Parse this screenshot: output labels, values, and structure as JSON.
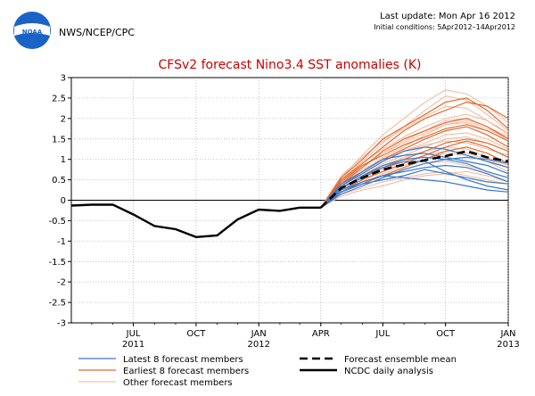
{
  "header": {
    "logo_text": "NOAA",
    "org": "NWS/NCEP/CPC",
    "last_update": "Last update: Mon Apr 16 2012",
    "initial_conditions": "Initial conditions: 5Apr2012–14Apr2012"
  },
  "colors": {
    "title": "#cc0000",
    "observed": "#000000",
    "ensemble_mean": "#000000",
    "latest_members": "#3a78c8",
    "earliest_members": "#e06a2e",
    "other_members": "#f2b79a",
    "grid": "#aaaaaa",
    "logo_blue": "#1a63c6"
  },
  "chart_data": {
    "type": "line",
    "title": "CFSv2 forecast Nino3.4 SST anomalies (K)",
    "xlabel": "",
    "ylabel": "",
    "ylim": [
      -3,
      3
    ],
    "yticks": [
      -3,
      -2.5,
      -2,
      -1.5,
      -1,
      -0.5,
      0,
      0.5,
      1,
      1.5,
      2,
      2.5,
      3
    ],
    "ytick_labels": [
      "-3",
      "-2.5",
      "-2",
      "-1.5",
      "-1",
      "-0.5",
      "0",
      "0.5",
      "1",
      "1.5",
      "2",
      "2.5",
      "3"
    ],
    "xlim": [
      "2011-04-15",
      "2013-01-15"
    ],
    "xticks": [
      {
        "x": "2011-07-15",
        "label": "JUL",
        "year": "2011"
      },
      {
        "x": "2011-10-15",
        "label": "OCT",
        "year": ""
      },
      {
        "x": "2012-01-15",
        "label": "JAN",
        "year": "2012"
      },
      {
        "x": "2012-04-15",
        "label": "APR",
        "year": ""
      },
      {
        "x": "2012-07-15",
        "label": "JUL",
        "year": ""
      },
      {
        "x": "2012-10-15",
        "label": "OCT",
        "year": ""
      },
      {
        "x": "2013-01-15",
        "label": "JAN",
        "year": "2013"
      }
    ],
    "grid": true,
    "legend_position": "bottom",
    "legend": [
      {
        "label": "Latest 8 forecast members",
        "style": "latest"
      },
      {
        "label": "Earliest 8 forecast members",
        "style": "earliest"
      },
      {
        "label": "Other forecast members",
        "style": "other"
      },
      {
        "label": "Forecast ensemble mean",
        "style": "mean"
      },
      {
        "label": "NCDC daily analysis",
        "style": "observed"
      }
    ],
    "observed": {
      "x": [
        "2011-04-15",
        "2011-05-15",
        "2011-06-15",
        "2011-07-15",
        "2011-08-15",
        "2011-09-15",
        "2011-10-15",
        "2011-11-15",
        "2011-12-15",
        "2012-01-15",
        "2012-02-15",
        "2012-03-15",
        "2012-04-15"
      ],
      "y": [
        -0.13,
        -0.11,
        -0.11,
        -0.35,
        -0.63,
        -0.71,
        -0.9,
        -0.86,
        -0.47,
        -0.23,
        -0.26,
        -0.18,
        -0.18
      ]
    },
    "ensemble_mean": {
      "x": [
        "2012-04-15",
        "2012-05-15",
        "2012-06-15",
        "2012-07-15",
        "2012-08-15",
        "2012-09-15",
        "2012-10-15",
        "2012-11-15",
        "2012-12-15",
        "2013-01-15"
      ],
      "y": [
        -0.18,
        0.3,
        0.55,
        0.75,
        0.87,
        0.98,
        1.08,
        1.2,
        1.05,
        0.95
      ]
    },
    "forecast_members": {
      "x": [
        "2012-04-15",
        "2012-05-15",
        "2012-06-15",
        "2012-07-15",
        "2012-08-15",
        "2012-09-15",
        "2012-10-15",
        "2012-11-15",
        "2012-12-15",
        "2013-01-15"
      ],
      "latest": [
        [
          -0.18,
          0.35,
          0.65,
          0.95,
          1.2,
          1.3,
          1.25,
          1.1,
          0.95,
          0.8
        ],
        [
          -0.18,
          0.2,
          0.45,
          0.6,
          0.7,
          0.8,
          0.85,
          0.8,
          0.65,
          0.45
        ],
        [
          -0.18,
          0.3,
          0.55,
          0.8,
          0.95,
          0.95,
          0.7,
          0.5,
          0.35,
          0.25
        ],
        [
          -0.18,
          0.25,
          0.45,
          0.6,
          0.55,
          0.5,
          0.45,
          0.35,
          0.25,
          0.2
        ],
        [
          -0.18,
          0.4,
          0.7,
          1.0,
          1.1,
          1.15,
          1.05,
          0.95,
          0.85,
          0.65
        ],
        [
          -0.18,
          0.15,
          0.35,
          0.55,
          0.75,
          0.9,
          1.0,
          1.05,
          1.0,
          0.9
        ],
        [
          -0.18,
          0.3,
          0.6,
          0.85,
          1.0,
          1.05,
          1.0,
          0.9,
          0.7,
          0.55
        ],
        [
          -0.18,
          0.2,
          0.4,
          0.5,
          0.6,
          0.75,
          0.65,
          0.55,
          0.45,
          0.4
        ]
      ],
      "earliest": [
        [
          -0.18,
          0.5,
          0.9,
          1.3,
          1.7,
          2.0,
          2.2,
          2.4,
          2.3,
          2.0
        ],
        [
          -0.18,
          0.55,
          1.0,
          1.5,
          1.8,
          2.1,
          2.4,
          2.5,
          2.2,
          1.75
        ],
        [
          -0.18,
          0.3,
          0.6,
          0.8,
          1.0,
          1.2,
          1.4,
          1.5,
          1.4,
          1.2
        ],
        [
          -0.18,
          0.4,
          0.8,
          1.2,
          1.5,
          1.7,
          1.9,
          2.0,
          1.8,
          1.5
        ],
        [
          -0.18,
          0.25,
          0.5,
          0.7,
          0.9,
          1.1,
          1.3,
          1.45,
          1.3,
          1.05
        ],
        [
          -0.18,
          0.35,
          0.7,
          1.0,
          1.25,
          1.5,
          1.7,
          1.8,
          1.6,
          1.3
        ],
        [
          -0.18,
          0.2,
          0.4,
          0.6,
          0.8,
          1.0,
          1.2,
          1.3,
          1.15,
          0.9
        ],
        [
          -0.18,
          0.45,
          0.85,
          1.1,
          1.35,
          1.55,
          1.75,
          1.85,
          1.7,
          1.45
        ]
      ],
      "other": [
        [
          -0.18,
          0.55,
          1.1,
          1.6,
          2.0,
          2.4,
          2.7,
          2.6,
          2.3,
          1.9
        ],
        [
          -0.18,
          0.5,
          0.95,
          1.4,
          1.8,
          2.2,
          2.55,
          2.45,
          2.1,
          1.7
        ],
        [
          -0.18,
          0.15,
          0.3,
          0.45,
          0.55,
          0.65,
          0.7,
          0.6,
          0.5,
          0.4
        ],
        [
          -0.18,
          0.35,
          0.7,
          1.05,
          1.3,
          1.6,
          1.85,
          1.95,
          1.75,
          1.5
        ],
        [
          -0.18,
          0.2,
          0.45,
          0.6,
          0.75,
          0.9,
          0.95,
          0.85,
          0.7,
          0.55
        ],
        [
          -0.18,
          0.45,
          0.9,
          1.25,
          1.55,
          1.8,
          2.0,
          2.1,
          1.95,
          1.65
        ],
        [
          -0.18,
          0.3,
          0.55,
          0.85,
          1.05,
          1.2,
          1.3,
          1.25,
          1.05,
          0.85
        ],
        [
          -0.18,
          0.4,
          0.75,
          1.0,
          1.2,
          1.35,
          1.45,
          1.4,
          1.25,
          1.1
        ],
        [
          -0.18,
          0.25,
          0.5,
          0.75,
          0.95,
          1.1,
          1.2,
          1.15,
          1.0,
          0.8
        ],
        [
          -0.18,
          0.6,
          1.05,
          1.45,
          1.75,
          2.05,
          2.3,
          2.25,
          1.95,
          1.6
        ],
        [
          -0.18,
          0.1,
          0.25,
          0.35,
          0.5,
          0.6,
          0.65,
          0.7,
          0.6,
          0.45
        ],
        [
          -0.18,
          0.35,
          0.65,
          0.95,
          1.2,
          1.4,
          1.6,
          1.65,
          1.5,
          1.25
        ],
        [
          -0.18,
          0.5,
          0.85,
          1.15,
          1.4,
          1.65,
          1.85,
          1.9,
          1.7,
          1.45
        ],
        [
          -0.18,
          0.2,
          0.4,
          0.65,
          0.85,
          1.0,
          1.15,
          1.1,
          0.95,
          0.7
        ],
        [
          -0.18,
          0.45,
          0.8,
          1.15,
          1.45,
          1.7,
          1.95,
          2.0,
          1.8,
          1.55
        ],
        [
          -0.18,
          0.3,
          0.6,
          0.9,
          1.1,
          1.3,
          1.5,
          1.55,
          1.4,
          1.2
        ]
      ]
    }
  }
}
